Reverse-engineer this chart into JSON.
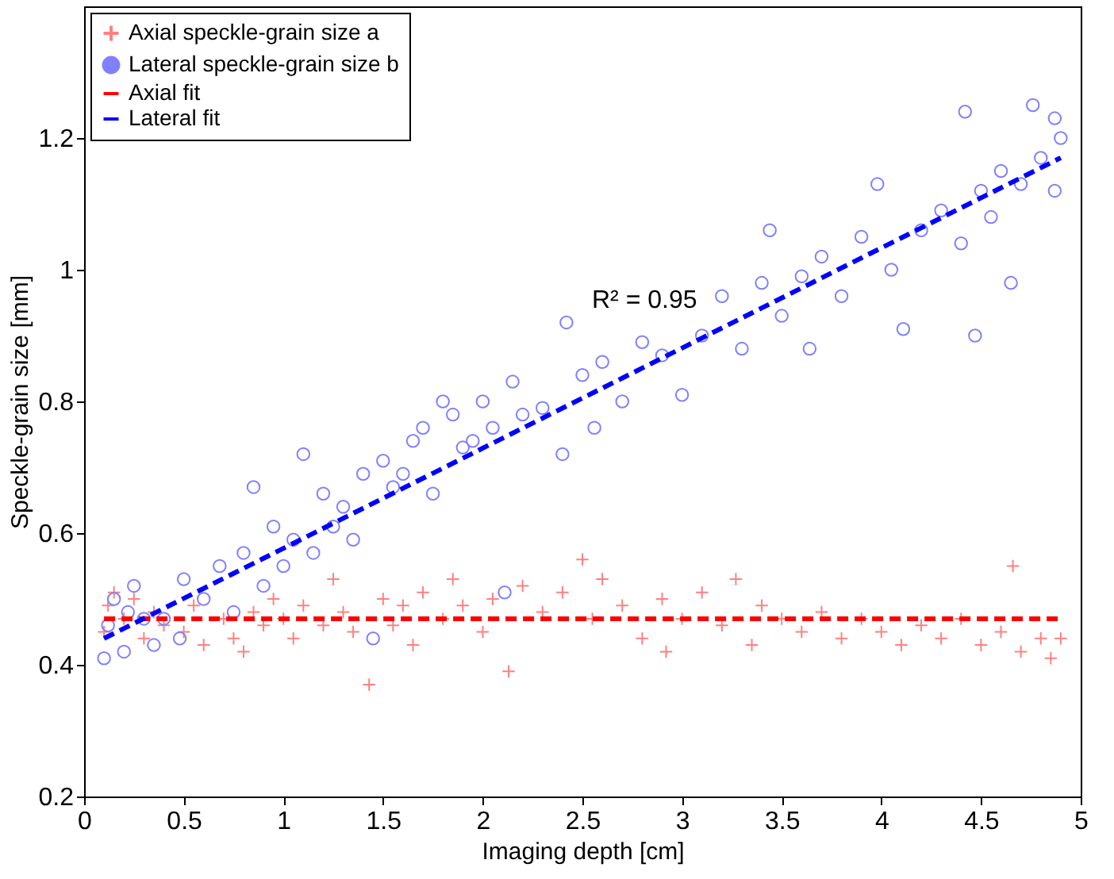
{
  "chart_data": {
    "type": "scatter",
    "xlabel": "Imaging depth [cm]",
    "ylabel": "Speckle-grain size [mm]",
    "xlim": [
      0,
      5
    ],
    "xticks": [
      0,
      0.5,
      1,
      1.5,
      2,
      2.5,
      3,
      3.5,
      4,
      4.5,
      5
    ],
    "ylim": [
      0.2,
      1.4
    ],
    "yticks": [
      0.2,
      0.4,
      0.6,
      0.8,
      1,
      1.2
    ],
    "grid": false,
    "legend": "top left",
    "annotations": [
      "R² = 0.95"
    ],
    "series": [
      {
        "name": "Axial speckle-grain size a",
        "color": "#ff8080",
        "marker": "cross",
        "x": [
          0.1,
          0.12,
          0.15,
          0.2,
          0.25,
          0.3,
          0.35,
          0.4,
          0.5,
          0.55,
          0.6,
          0.7,
          0.75,
          0.8,
          0.85,
          0.9,
          0.95,
          1.0,
          1.05,
          1.1,
          1.2,
          1.25,
          1.3,
          1.35,
          1.43,
          1.5,
          1.55,
          1.6,
          1.65,
          1.7,
          1.8,
          1.85,
          1.9,
          2.0,
          2.05,
          2.13,
          2.2,
          2.3,
          2.4,
          2.5,
          2.55,
          2.6,
          2.7,
          2.8,
          2.9,
          2.92,
          3.0,
          3.1,
          3.2,
          3.27,
          3.35,
          3.4,
          3.5,
          3.6,
          3.7,
          3.8,
          3.9,
          4.0,
          4.1,
          4.2,
          4.3,
          4.4,
          4.5,
          4.6,
          4.66,
          4.7,
          4.8,
          4.85,
          4.9
        ],
        "values": [
          0.45,
          0.49,
          0.51,
          0.47,
          0.5,
          0.44,
          0.48,
          0.46,
          0.45,
          0.49,
          0.43,
          0.47,
          0.44,
          0.42,
          0.48,
          0.46,
          0.5,
          0.47,
          0.44,
          0.49,
          0.46,
          0.53,
          0.48,
          0.45,
          0.37,
          0.5,
          0.46,
          0.49,
          0.43,
          0.51,
          0.47,
          0.53,
          0.49,
          0.45,
          0.5,
          0.39,
          0.52,
          0.48,
          0.51,
          0.56,
          0.47,
          0.53,
          0.49,
          0.44,
          0.5,
          0.42,
          0.47,
          0.51,
          0.46,
          0.53,
          0.43,
          0.49,
          0.47,
          0.45,
          0.48,
          0.44,
          0.47,
          0.45,
          0.43,
          0.46,
          0.44,
          0.47,
          0.43,
          0.45,
          0.55,
          0.42,
          0.44,
          0.41,
          0.44
        ]
      },
      {
        "name": "Lateral speckle-grain size b",
        "color": "#8080ff",
        "marker": "circle",
        "x": [
          0.1,
          0.12,
          0.15,
          0.2,
          0.22,
          0.25,
          0.3,
          0.35,
          0.4,
          0.48,
          0.5,
          0.6,
          0.68,
          0.75,
          0.8,
          0.85,
          0.9,
          0.95,
          1.0,
          1.05,
          1.1,
          1.15,
          1.2,
          1.25,
          1.3,
          1.35,
          1.4,
          1.45,
          1.5,
          1.55,
          1.6,
          1.65,
          1.7,
          1.75,
          1.8,
          1.85,
          1.9,
          1.95,
          2.0,
          2.05,
          2.11,
          2.15,
          2.2,
          2.3,
          2.4,
          2.42,
          2.5,
          2.56,
          2.6,
          2.7,
          2.8,
          2.9,
          3.0,
          3.1,
          3.2,
          3.3,
          3.4,
          3.44,
          3.5,
          3.6,
          3.64,
          3.7,
          3.8,
          3.9,
          3.98,
          4.05,
          4.11,
          4.2,
          4.3,
          4.4,
          4.42,
          4.47,
          4.5,
          4.55,
          4.6,
          4.65,
          4.7,
          4.76,
          4.8,
          4.87,
          4.87,
          4.9
        ],
        "values": [
          0.41,
          0.46,
          0.5,
          0.42,
          0.48,
          0.52,
          0.47,
          0.43,
          0.47,
          0.44,
          0.53,
          0.5,
          0.55,
          0.48,
          0.57,
          0.67,
          0.52,
          0.61,
          0.55,
          0.59,
          0.72,
          0.57,
          0.66,
          0.61,
          0.64,
          0.59,
          0.69,
          0.44,
          0.71,
          0.67,
          0.69,
          0.74,
          0.76,
          0.66,
          0.8,
          0.78,
          0.73,
          0.74,
          0.8,
          0.76,
          0.51,
          0.83,
          0.78,
          0.79,
          0.72,
          0.92,
          0.84,
          0.76,
          0.86,
          0.8,
          0.89,
          0.87,
          0.81,
          0.9,
          0.96,
          0.88,
          0.98,
          1.06,
          0.93,
          0.99,
          0.88,
          1.02,
          0.96,
          1.05,
          1.13,
          1.0,
          0.91,
          1.06,
          1.09,
          1.04,
          1.24,
          0.9,
          1.12,
          1.08,
          1.15,
          0.98,
          1.13,
          1.25,
          1.17,
          1.12,
          1.23,
          1.2
        ]
      },
      {
        "name": "Axial fit",
        "type": "line",
        "color": "#ff0000",
        "line_style": "dashed",
        "marker": "none",
        "x": [
          0.1,
          4.9
        ],
        "values": [
          0.47,
          0.47
        ]
      },
      {
        "name": "Lateral fit",
        "type": "line",
        "color": "#0000ff",
        "line_style": "dashed",
        "marker": "none",
        "x": [
          0.1,
          4.9
        ],
        "values": [
          0.44,
          1.17
        ]
      }
    ]
  }
}
